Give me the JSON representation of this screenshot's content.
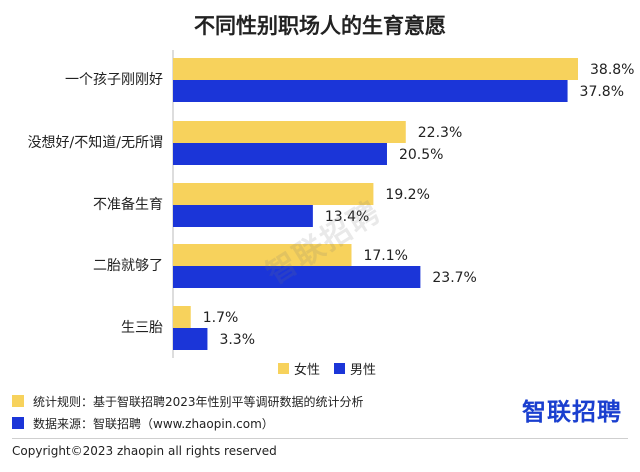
{
  "chart_data": {
    "type": "bar",
    "orientation": "horizontal",
    "title": "不同性别职场人的生育意愿",
    "categories": [
      "一个孩子刚刚好",
      "没想好/不知道/无所谓",
      "不准备生育",
      "二胎就够了",
      "生三胎"
    ],
    "series": [
      {
        "name": "女性",
        "color": "#f7d25c",
        "values": [
          38.8,
          22.3,
          19.2,
          17.1,
          1.7
        ],
        "labels": [
          "38.8%",
          "22.3%",
          "19.2%",
          "17.1%",
          "1.7%"
        ]
      },
      {
        "name": "男性",
        "color": "#1b35d8",
        "values": [
          37.8,
          20.5,
          13.4,
          23.7,
          3.3
        ],
        "labels": [
          "37.8%",
          "20.5%",
          "13.4%",
          "23.7%",
          "3.3%"
        ]
      }
    ],
    "xlim": [
      0,
      38.8
    ],
    "legend_position": "bottom-right",
    "grid": false
  },
  "watermark": "智联招聘",
  "notes": [
    {
      "text": "统计规则：基于智联招聘2023年性别平等调研数据的统计分析",
      "color": "#f7d25c"
    },
    {
      "text": "数据来源：智联招聘（www.zhaopin.com）",
      "color": "#1b35d8"
    }
  ],
  "brand": "智联招聘",
  "copyright": "Copyright©2023 zhaopin all rights reserved"
}
